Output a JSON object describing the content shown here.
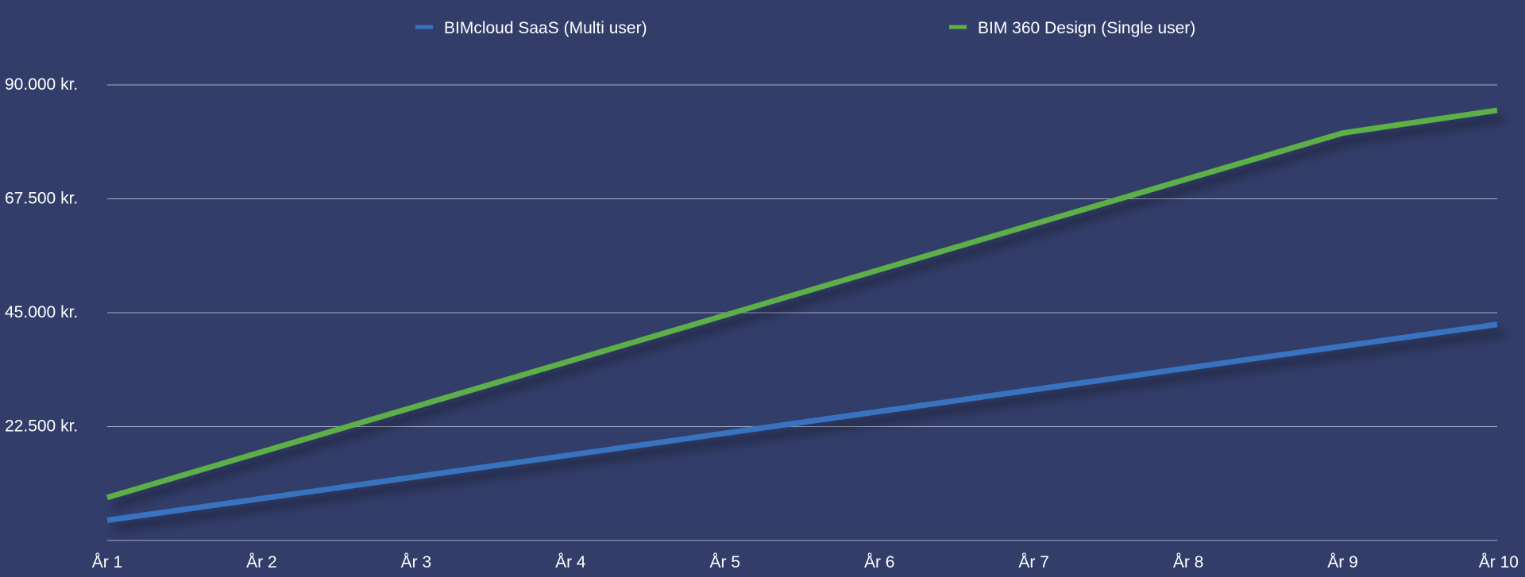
{
  "chart_data": {
    "type": "line",
    "title": "",
    "xlabel": "",
    "ylabel": "",
    "categories": [
      "År 1",
      "År 2",
      "År 3",
      "År 4",
      "År 5",
      "År 6",
      "År 7",
      "År 8",
      "År 9",
      "År 10"
    ],
    "series": [
      {
        "name": "BIMcloud SaaS (Multi user)",
        "color": "#3773c0",
        "values": [
          4000,
          8300,
          12600,
          16900,
          21200,
          25500,
          29800,
          34100,
          38400,
          42700
        ]
      },
      {
        "name": "BIM 360 Design (Single user)",
        "color": "#5bb046",
        "values": [
          8500,
          17500,
          26500,
          35500,
          44500,
          53500,
          62500,
          71500,
          80500,
          85000
        ]
      }
    ],
    "ylim": [
      0,
      90000
    ],
    "yticks": [
      22500,
      45000,
      67500,
      90000
    ],
    "ytick_labels": [
      "22.500 kr.",
      "45.000 kr.",
      "67.500 kr.",
      "90.000 kr."
    ],
    "grid": true,
    "legend_position": "top-center",
    "background": "#323d69"
  }
}
